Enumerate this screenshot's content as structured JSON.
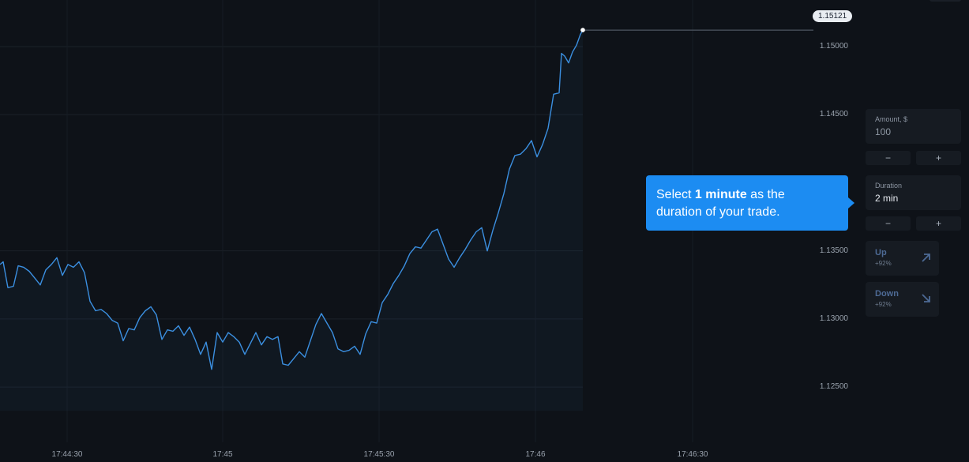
{
  "chart": {
    "y_ticks": [
      "1.15000",
      "1.14500",
      "1.13500",
      "1.13000",
      "1.12500"
    ],
    "x_ticks": [
      "17:44:30",
      "17:45",
      "17:45:30",
      "17:46",
      "17:46:30"
    ],
    "current_price": "1.15121",
    "line_color": "#3b8fe0"
  },
  "chart_data": {
    "type": "line",
    "x_ticks": [
      "17:44:30",
      "17:45",
      "17:45:30",
      "17:46",
      "17:46:30"
    ],
    "y_ticks": [
      1.125,
      1.13,
      1.135,
      1.145,
      1.15
    ],
    "ylim": [
      1.1235,
      1.1522
    ],
    "series": [
      {
        "points": [
          [
            0,
            1.134
          ],
          [
            4,
            1.1342
          ],
          [
            10,
            1.1323
          ],
          [
            17,
            1.1324
          ],
          [
            23,
            1.1339
          ],
          [
            30,
            1.1338
          ],
          [
            37,
            1.1335
          ],
          [
            44,
            1.133
          ],
          [
            51,
            1.1325
          ],
          [
            58,
            1.1336
          ],
          [
            65,
            1.134
          ],
          [
            72,
            1.1345
          ],
          [
            79,
            1.1332
          ],
          [
            86,
            1.134
          ],
          [
            93,
            1.1338
          ],
          [
            100,
            1.1342
          ],
          [
            107,
            1.1334
          ],
          [
            114,
            1.1313
          ],
          [
            121,
            1.1306
          ],
          [
            128,
            1.1307
          ],
          [
            135,
            1.1304
          ],
          [
            142,
            1.1299
          ],
          [
            149,
            1.1297
          ],
          [
            156,
            1.1284
          ],
          [
            163,
            1.1293
          ],
          [
            170,
            1.1292
          ],
          [
            177,
            1.1301
          ],
          [
            184,
            1.1306
          ],
          [
            191,
            1.1309
          ],
          [
            198,
            1.1303
          ],
          [
            205,
            1.1285
          ],
          [
            212,
            1.1292
          ],
          [
            219,
            1.1291
          ],
          [
            226,
            1.1295
          ],
          [
            233,
            1.1288
          ],
          [
            240,
            1.1294
          ],
          [
            247,
            1.1285
          ],
          [
            254,
            1.1274
          ],
          [
            261,
            1.1283
          ],
          [
            268,
            1.1263
          ],
          [
            275,
            1.129
          ],
          [
            282,
            1.1283
          ],
          [
            289,
            1.129
          ],
          [
            296,
            1.1287
          ],
          [
            303,
            1.1283
          ],
          [
            310,
            1.1274
          ],
          [
            317,
            1.1282
          ],
          [
            324,
            1.129
          ],
          [
            331,
            1.1281
          ],
          [
            338,
            1.1287
          ],
          [
            345,
            1.1285
          ],
          [
            352,
            1.1287
          ],
          [
            358,
            1.1267
          ],
          [
            365,
            1.1266
          ],
          [
            372,
            1.1271
          ],
          [
            379,
            1.1276
          ],
          [
            386,
            1.1272
          ],
          [
            393,
            1.1284
          ],
          [
            400,
            1.1296
          ],
          [
            407,
            1.1304
          ],
          [
            414,
            1.1297
          ],
          [
            421,
            1.129
          ],
          [
            428,
            1.1278
          ],
          [
            435,
            1.1276
          ],
          [
            442,
            1.1277
          ],
          [
            449,
            1.128
          ],
          [
            456,
            1.1274
          ],
          [
            463,
            1.1289
          ],
          [
            470,
            1.1298
          ],
          [
            477,
            1.1297
          ],
          [
            484,
            1.1312
          ],
          [
            491,
            1.1318
          ],
          [
            498,
            1.1326
          ],
          [
            505,
            1.1332
          ],
          [
            512,
            1.1339
          ],
          [
            519,
            1.1348
          ],
          [
            526,
            1.1353
          ],
          [
            533,
            1.1352
          ],
          [
            540,
            1.1358
          ],
          [
            547,
            1.1364
          ],
          [
            554,
            1.1366
          ],
          [
            561,
            1.1355
          ],
          [
            568,
            1.1344
          ],
          [
            575,
            1.1338
          ],
          [
            582,
            1.1345
          ],
          [
            589,
            1.1351
          ],
          [
            596,
            1.1358
          ],
          [
            603,
            1.1364
          ],
          [
            610,
            1.1367
          ],
          [
            617,
            1.135
          ],
          [
            624,
            1.1365
          ],
          [
            631,
            1.1378
          ],
          [
            638,
            1.1392
          ],
          [
            645,
            1.141
          ],
          [
            652,
            1.142
          ],
          [
            659,
            1.1421
          ],
          [
            666,
            1.1425
          ],
          [
            673,
            1.1431
          ],
          [
            680,
            1.1419
          ],
          [
            687,
            1.1428
          ],
          [
            694,
            1.144
          ],
          [
            701,
            1.1465
          ],
          [
            708,
            1.1466
          ],
          [
            711,
            1.1495
          ],
          [
            715,
            1.1493
          ],
          [
            720,
            1.1488
          ],
          [
            725,
            1.1496
          ],
          [
            730,
            1.1501
          ],
          [
            735,
            1.1509
          ],
          [
            738,
            1.1512
          ]
        ]
      }
    ],
    "current_value": 1.15121
  },
  "panel": {
    "amount": {
      "label": "Amount, $",
      "value": "100",
      "minus": "−",
      "plus": "+"
    },
    "duration": {
      "label": "Duration",
      "value": "2 min",
      "minus": "−",
      "plus": "+"
    },
    "up": {
      "label": "Up",
      "pct": "+92%"
    },
    "down": {
      "label": "Down",
      "pct": "+92%"
    }
  },
  "tooltip": {
    "pre": "Select ",
    "bold": "1 minute",
    "post": " as the duration of your trade."
  }
}
